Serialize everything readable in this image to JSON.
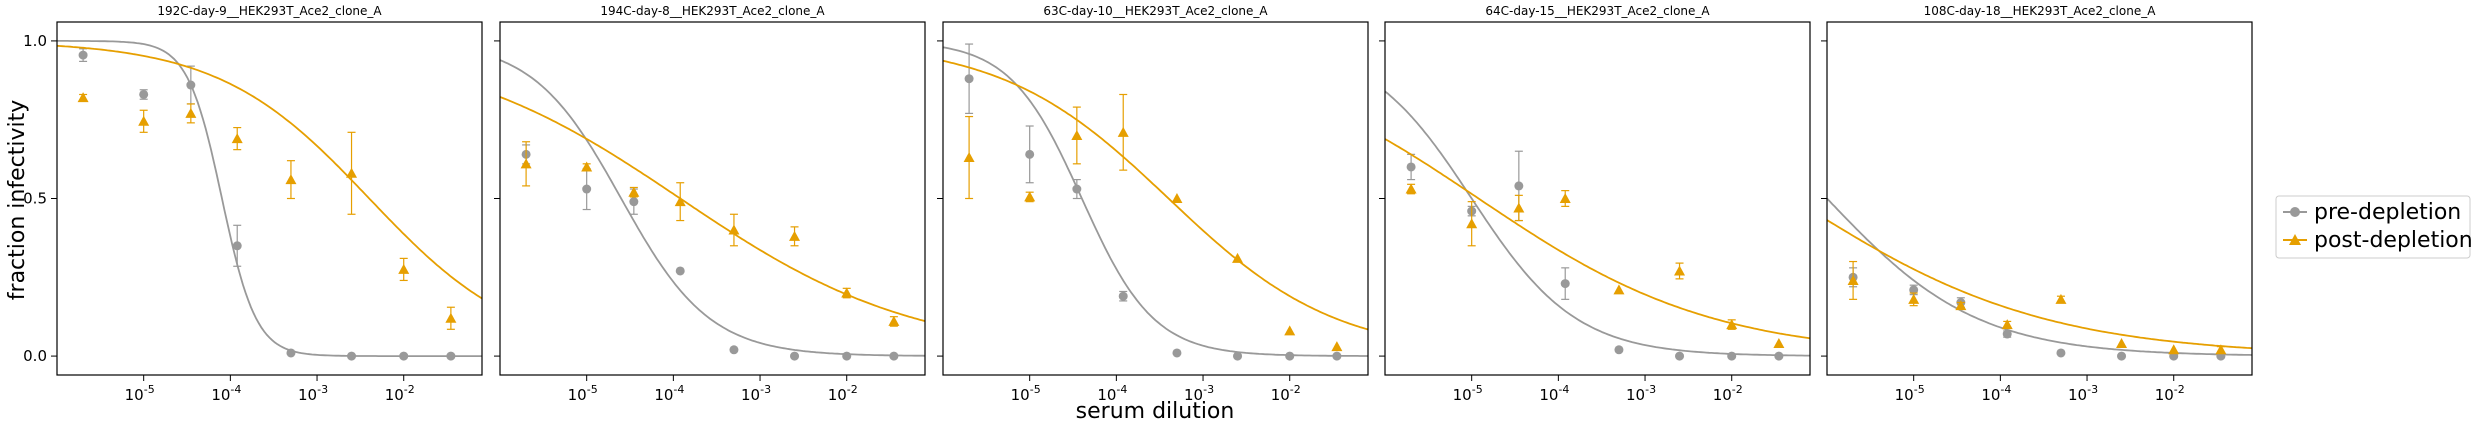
{
  "figure": {
    "ylabel": "fraction infectivity",
    "xlabel": "serum dilution",
    "legend": [
      "pre-depletion",
      "post-depletion"
    ],
    "colors": {
      "pre": "#999999",
      "post": "#E69F00"
    }
  },
  "chart_data": [
    {
      "type": "line",
      "title": "192C-day-9__HEK293T_Ace2_clone_A",
      "xscale": "log",
      "xlim": [
        1e-06,
        0.08
      ],
      "ylim": [
        -0.06,
        1.06
      ],
      "x_tick_labels": [
        "10^-5",
        "10^-4",
        "10^-3",
        "10^-2"
      ],
      "y_tick_labels": [
        "0.0",
        "0.5",
        "1.0"
      ],
      "legend_position": "right",
      "series": [
        {
          "name": "pre-depletion",
          "marker": "circle",
          "points": [
            {
              "x": 2e-06,
              "y": 0.955,
              "err": 0.02
            },
            {
              "x": 1e-05,
              "y": 0.83,
              "err": 0.015
            },
            {
              "x": 3.5e-05,
              "y": 0.86,
              "err": 0.06
            },
            {
              "x": 0.00012,
              "y": 0.35,
              "err": 0.065
            },
            {
              "x": 0.0005,
              "y": 0.01,
              "err": 0
            },
            {
              "x": 0.0025,
              "y": 0.0,
              "err": 0
            },
            {
              "x": 0.01,
              "y": 0.0,
              "err": 0
            },
            {
              "x": 0.035,
              "y": 0.0,
              "err": 0
            }
          ],
          "curve": {
            "ic50": 8e-05,
            "hill": 2.2,
            "top": 1.0,
            "bottom": 0.0
          }
        },
        {
          "name": "post-depletion",
          "marker": "triangle",
          "points": [
            {
              "x": 2e-06,
              "y": 0.82,
              "err": 0.01
            },
            {
              "x": 1e-05,
              "y": 0.745,
              "err": 0.035
            },
            {
              "x": 3.5e-05,
              "y": 0.77,
              "err": 0.03
            },
            {
              "x": 0.00012,
              "y": 0.69,
              "err": 0.035
            },
            {
              "x": 0.0005,
              "y": 0.56,
              "err": 0.06
            },
            {
              "x": 0.0025,
              "y": 0.58,
              "err": 0.13
            },
            {
              "x": 0.01,
              "y": 0.275,
              "err": 0.035
            },
            {
              "x": 0.035,
              "y": 0.12,
              "err": 0.035
            }
          ],
          "curve": {
            "ic50": 0.004,
            "hill": 0.5,
            "top": 1.0,
            "bottom": 0.0
          }
        }
      ]
    },
    {
      "type": "line",
      "title": "194C-day-8__HEK293T_Ace2_clone_A",
      "xscale": "log",
      "xlim": [
        1e-06,
        0.08
      ],
      "ylim": [
        -0.06,
        1.06
      ],
      "x_tick_labels": [
        "10^-5",
        "10^-4",
        "10^-3",
        "10^-2"
      ],
      "y_tick_labels": [
        "0.0",
        "0.5",
        "1.0"
      ],
      "series": [
        {
          "name": "pre-depletion",
          "marker": "circle",
          "points": [
            {
              "x": 2e-06,
              "y": 0.64,
              "err": 0.03
            },
            {
              "x": 1e-05,
              "y": 0.53,
              "err": 0.065
            },
            {
              "x": 3.5e-05,
              "y": 0.49,
              "err": 0.04
            },
            {
              "x": 0.00012,
              "y": 0.27,
              "err": 0
            },
            {
              "x": 0.0005,
              "y": 0.02,
              "err": 0
            },
            {
              "x": 0.0025,
              "y": 0.0,
              "err": 0
            },
            {
              "x": 0.01,
              "y": 0.0,
              "err": 0
            },
            {
              "x": 0.035,
              "y": 0.0,
              "err": 0
            }
          ],
          "curve": {
            "ic50": 2.5e-05,
            "hill": 0.85,
            "top": 1.0,
            "bottom": 0.0
          }
        },
        {
          "name": "post-depletion",
          "marker": "triangle",
          "points": [
            {
              "x": 2e-06,
              "y": 0.61,
              "err": 0.07
            },
            {
              "x": 1e-05,
              "y": 0.6,
              "err": 0.01
            },
            {
              "x": 3.5e-05,
              "y": 0.52,
              "err": 0.015
            },
            {
              "x": 0.00012,
              "y": 0.49,
              "err": 0.06
            },
            {
              "x": 0.0005,
              "y": 0.4,
              "err": 0.05
            },
            {
              "x": 0.0025,
              "y": 0.38,
              "err": 0.03
            },
            {
              "x": 0.01,
              "y": 0.2,
              "err": 0.015
            },
            {
              "x": 0.035,
              "y": 0.11,
              "err": 0.015
            }
          ],
          "curve": {
            "ic50": 0.00012,
            "hill": 0.32,
            "top": 1.0,
            "bottom": 0.0
          }
        }
      ]
    },
    {
      "type": "line",
      "title": "63C-day-10__HEK293T_Ace2_clone_A",
      "xscale": "log",
      "xlim": [
        1e-06,
        0.08
      ],
      "ylim": [
        -0.06,
        1.06
      ],
      "x_tick_labels": [
        "10^-5",
        "10^-4",
        "10^-3",
        "10^-2"
      ],
      "y_tick_labels": [
        "0.0",
        "0.5",
        "1.0"
      ],
      "series": [
        {
          "name": "pre-depletion",
          "marker": "circle",
          "points": [
            {
              "x": 2e-06,
              "y": 0.88,
              "err": 0.11
            },
            {
              "x": 1e-05,
              "y": 0.64,
              "err": 0.09
            },
            {
              "x": 3.5e-05,
              "y": 0.53,
              "err": 0.03
            },
            {
              "x": 0.00012,
              "y": 0.19,
              "err": 0.015
            },
            {
              "x": 0.0005,
              "y": 0.01,
              "err": 0
            },
            {
              "x": 0.0025,
              "y": 0.0,
              "err": 0
            },
            {
              "x": 0.01,
              "y": 0.0,
              "err": 0
            },
            {
              "x": 0.035,
              "y": 0.0,
              "err": 0
            }
          ],
          "curve": {
            "ic50": 4e-05,
            "hill": 1.05,
            "top": 1.0,
            "bottom": 0.0
          }
        },
        {
          "name": "post-depletion",
          "marker": "triangle",
          "points": [
            {
              "x": 2e-06,
              "y": 0.63,
              "err": 0.13
            },
            {
              "x": 1e-05,
              "y": 0.505,
              "err": 0.015
            },
            {
              "x": 3.5e-05,
              "y": 0.7,
              "err": 0.09
            },
            {
              "x": 0.00012,
              "y": 0.71,
              "err": 0.12
            },
            {
              "x": 0.0005,
              "y": 0.5,
              "err": 0
            },
            {
              "x": 0.0025,
              "y": 0.31,
              "err": 0
            },
            {
              "x": 0.01,
              "y": 0.08,
              "err": 0
            },
            {
              "x": 0.035,
              "y": 0.03,
              "err": 0
            }
          ],
          "curve": {
            "ic50": 0.0004,
            "hill": 0.45,
            "top": 1.0,
            "bottom": 0.0
          }
        }
      ]
    },
    {
      "type": "line",
      "title": "64C-day-15__HEK293T_Ace2_clone_A",
      "xscale": "log",
      "xlim": [
        1e-06,
        0.08
      ],
      "ylim": [
        -0.06,
        1.06
      ],
      "x_tick_labels": [
        "10^-5",
        "10^-4",
        "10^-3",
        "10^-2"
      ],
      "y_tick_labels": [
        "0.0",
        "0.5",
        "1.0"
      ],
      "series": [
        {
          "name": "pre-depletion",
          "marker": "circle",
          "points": [
            {
              "x": 2e-06,
              "y": 0.6,
              "err": 0.04
            },
            {
              "x": 1e-05,
              "y": 0.46,
              "err": 0.015
            },
            {
              "x": 3.5e-05,
              "y": 0.54,
              "err": 0.11
            },
            {
              "x": 0.00012,
              "y": 0.23,
              "err": 0.05
            },
            {
              "x": 0.0005,
              "y": 0.02,
              "err": 0
            },
            {
              "x": 0.0025,
              "y": 0.0,
              "err": 0
            },
            {
              "x": 0.01,
              "y": 0.0,
              "err": 0
            },
            {
              "x": 0.035,
              "y": 0.0,
              "err": 0
            }
          ],
          "curve": {
            "ic50": 1e-05,
            "hill": 0.72,
            "top": 1.0,
            "bottom": 0.0
          }
        },
        {
          "name": "post-depletion",
          "marker": "triangle",
          "points": [
            {
              "x": 2e-06,
              "y": 0.53,
              "err": 0.015
            },
            {
              "x": 1e-05,
              "y": 0.42,
              "err": 0.07
            },
            {
              "x": 3.5e-05,
              "y": 0.47,
              "err": 0.04
            },
            {
              "x": 0.00012,
              "y": 0.5,
              "err": 0.025
            },
            {
              "x": 0.0005,
              "y": 0.21,
              "err": 0
            },
            {
              "x": 0.0025,
              "y": 0.27,
              "err": 0.025
            },
            {
              "x": 0.01,
              "y": 0.1,
              "err": 0.015
            },
            {
              "x": 0.035,
              "y": 0.04,
              "err": 0
            }
          ],
          "curve": {
            "ic50": 1.2e-05,
            "hill": 0.32,
            "top": 1.0,
            "bottom": 0.0
          }
        }
      ]
    },
    {
      "type": "line",
      "title": "108C-day-18__HEK293T_Ace2_clone_A",
      "xscale": "log",
      "xlim": [
        1e-06,
        0.08
      ],
      "ylim": [
        -0.06,
        1.06
      ],
      "x_tick_labels": [
        "10^-5",
        "10^-4",
        "10^-3",
        "10^-2"
      ],
      "y_tick_labels": [
        "0.0",
        "0.5",
        "1.0"
      ],
      "series": [
        {
          "name": "pre-depletion",
          "marker": "circle",
          "points": [
            {
              "x": 2e-06,
              "y": 0.25,
              "err": 0.03
            },
            {
              "x": 1e-05,
              "y": 0.21,
              "err": 0.015
            },
            {
              "x": 3.5e-05,
              "y": 0.17,
              "err": 0.015
            },
            {
              "x": 0.00012,
              "y": 0.07,
              "err": 0.01
            },
            {
              "x": 0.0005,
              "y": 0.01,
              "err": 0
            },
            {
              "x": 0.0025,
              "y": 0.0,
              "err": 0
            },
            {
              "x": 0.01,
              "y": 0.0,
              "err": 0
            },
            {
              "x": 0.035,
              "y": 0.0,
              "err": 0
            }
          ],
          "curve": {
            "ic50": 1e-06,
            "hill": 0.5,
            "top": 1.0,
            "bottom": 0.0
          }
        },
        {
          "name": "post-depletion",
          "marker": "triangle",
          "points": [
            {
              "x": 2e-06,
              "y": 0.24,
              "err": 0.06
            },
            {
              "x": 1e-05,
              "y": 0.18,
              "err": 0.02
            },
            {
              "x": 3.5e-05,
              "y": 0.16,
              "err": 0.01
            },
            {
              "x": 0.00012,
              "y": 0.1,
              "err": 0.01
            },
            {
              "x": 0.0005,
              "y": 0.18,
              "err": 0.01
            },
            {
              "x": 0.0025,
              "y": 0.04,
              "err": 0
            },
            {
              "x": 0.01,
              "y": 0.02,
              "err": 0
            },
            {
              "x": 0.035,
              "y": 0.02,
              "err": 0.01
            }
          ],
          "curve": {
            "ic50": 4e-07,
            "hill": 0.3,
            "top": 1.0,
            "bottom": 0.0
          }
        }
      ]
    }
  ]
}
